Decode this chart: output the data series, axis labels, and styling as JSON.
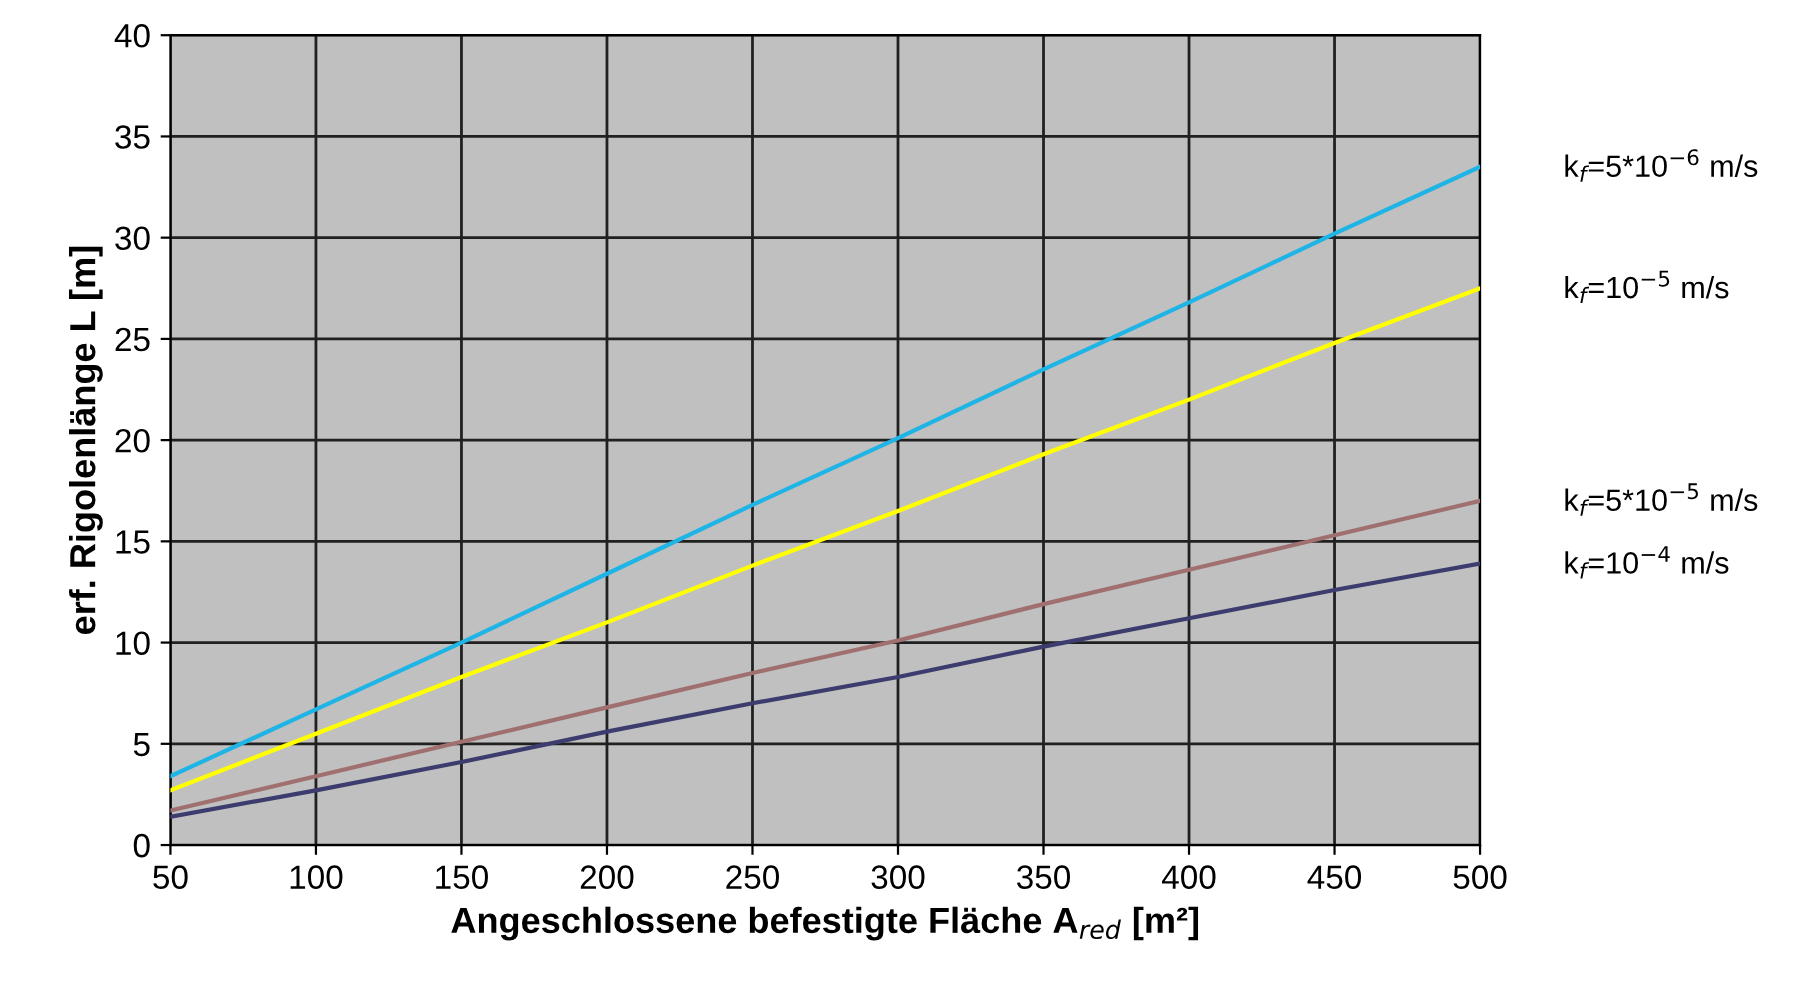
{
  "chart_data": {
    "type": "line",
    "xlabel": "Angeschlossene befestigte Fläche A$_{red}$ [m²]",
    "ylabel": "erf. Rigolenlänge L [m]",
    "x": [
      50,
      100,
      150,
      200,
      250,
      300,
      350,
      400,
      450,
      500
    ],
    "series": [
      {
        "name": "k$_{f}$=5*10$^{−6}$ m/s",
        "color": "#1eb4e6",
        "values": [
          3.4,
          6.7,
          10.0,
          13.4,
          16.8,
          20.1,
          23.5,
          26.8,
          30.2,
          33.5
        ]
      },
      {
        "name": "k$_{f}$=10$^{−5}$ m/s",
        "color": "#ffff00",
        "values": [
          2.7,
          5.5,
          8.3,
          11.0,
          13.8,
          16.5,
          19.3,
          22.0,
          24.8,
          27.5
        ]
      },
      {
        "name": "k$_{f}$=5*10$^{−5}$ m/s",
        "color": "#a07070",
        "values": [
          1.7,
          3.4,
          5.1,
          6.8,
          8.5,
          10.1,
          11.9,
          13.6,
          15.3,
          17.0
        ]
      },
      {
        "name": "k$_{f}$=10$^{−4}$ m/s",
        "color": "#3c3c6e",
        "values": [
          1.4,
          2.7,
          4.1,
          5.6,
          7.0,
          8.3,
          9.8,
          11.2,
          12.6,
          13.9
        ]
      }
    ],
    "xlim": [
      50,
      500
    ],
    "xticks": [
      50,
      100,
      150,
      200,
      250,
      300,
      350,
      400,
      450,
      500
    ],
    "ylim": [
      0,
      40
    ],
    "yticks": [
      0,
      5,
      10,
      15,
      20,
      25,
      30,
      35,
      40
    ],
    "grid": true,
    "marker": "none",
    "line_style": "solid"
  }
}
